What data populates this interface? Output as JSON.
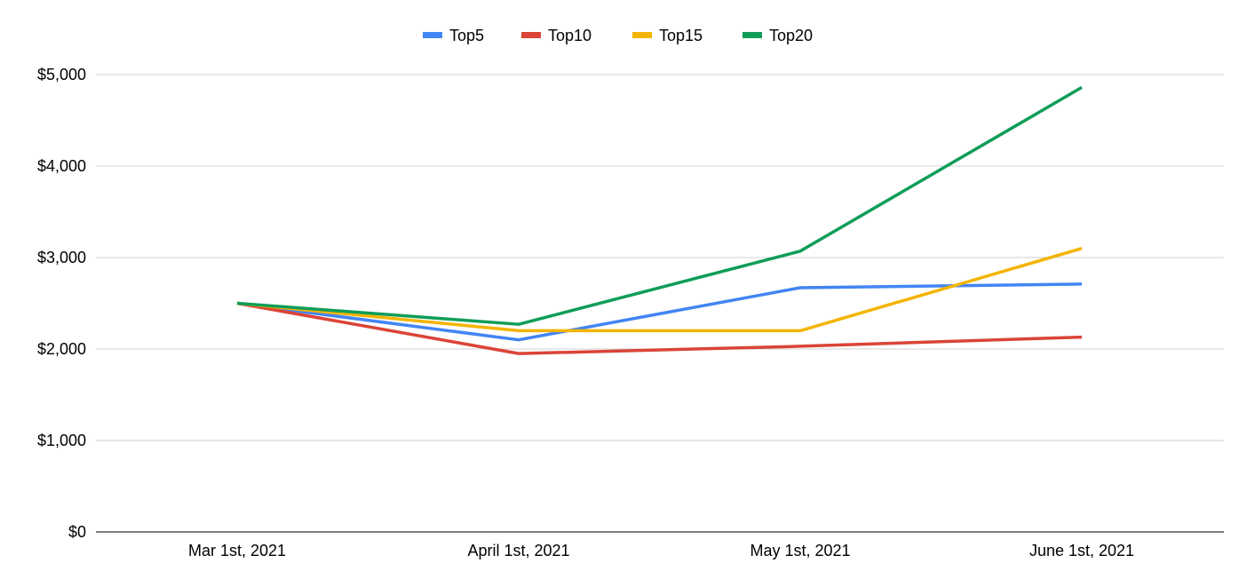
{
  "chart_data": {
    "type": "line",
    "title": "",
    "xlabel": "",
    "ylabel": "",
    "categories": [
      "Mar 1st, 2021",
      "April 1st, 2021",
      "May 1st, 2021",
      "June 1st, 2021"
    ],
    "ylim": [
      0,
      5000
    ],
    "yticks": [
      0,
      1000,
      2000,
      3000,
      4000,
      5000
    ],
    "ytick_labels": [
      "$0",
      "$1,000",
      "$2,000",
      "$3,000",
      "$4,000",
      "$5,000"
    ],
    "grid": true,
    "legend_position": "top-center",
    "series": [
      {
        "name": "Top5",
        "color": "#4285F4",
        "values": [
          2500,
          2100,
          2670,
          2710
        ]
      },
      {
        "name": "Top10",
        "color": "#DB4437",
        "values": [
          2500,
          1950,
          2030,
          2130
        ]
      },
      {
        "name": "Top15",
        "color": "#F4B400",
        "values": [
          2500,
          2200,
          2200,
          3100
        ]
      },
      {
        "name": "Top20",
        "color": "#0F9D58",
        "values": [
          2500,
          2270,
          3070,
          4860
        ]
      }
    ]
  }
}
